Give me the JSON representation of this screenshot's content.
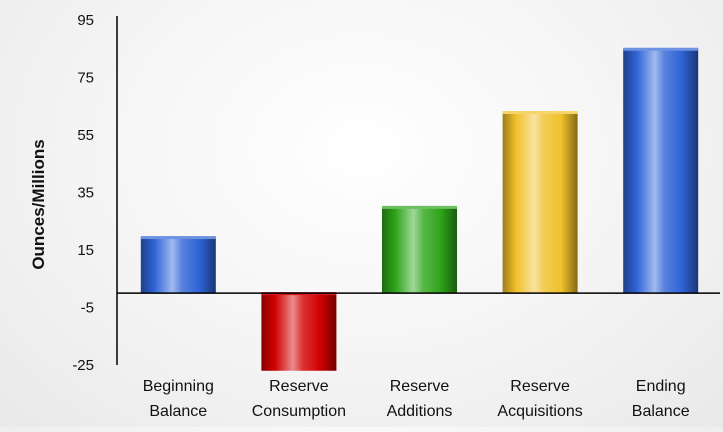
{
  "chart_data": {
    "type": "bar",
    "title": "",
    "xlabel": "",
    "ylabel": "Ounces/Millions",
    "ylim": [
      -25,
      95
    ],
    "yticks": [
      -25,
      -5,
      15,
      35,
      55,
      75,
      95
    ],
    "grid": false,
    "legend": "none",
    "categories": [
      [
        "Beginning",
        "Balance"
      ],
      [
        "Reserve",
        "Consumption"
      ],
      [
        "Reserve",
        "Additions"
      ],
      [
        "Reserve",
        "Acquisitions"
      ],
      [
        "Ending",
        "Balance"
      ]
    ],
    "values": [
      19.5,
      -27,
      30,
      63,
      85
    ],
    "bar_colors": [
      "#2f63d6",
      "#d10000",
      "#2fa51a",
      "#f0c12a",
      "#2f63d6"
    ]
  }
}
